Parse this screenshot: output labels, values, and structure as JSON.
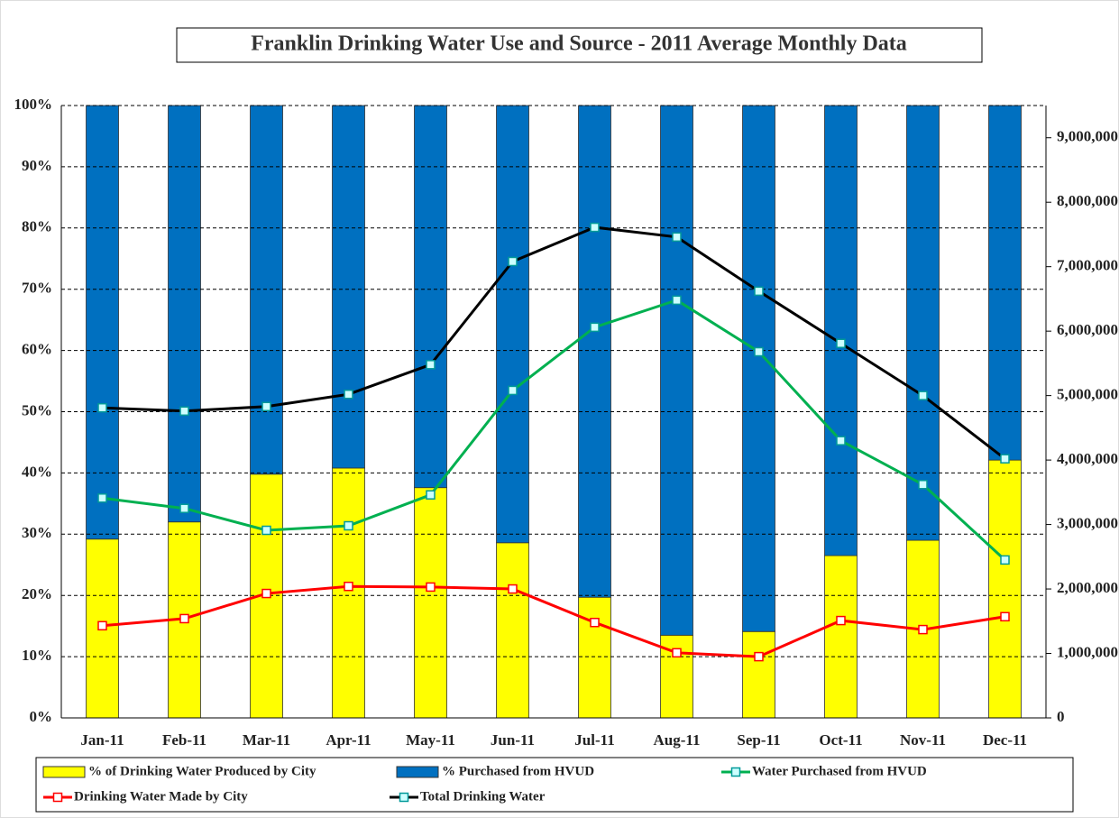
{
  "chart_data": {
    "type": "bar",
    "title": "Franklin Drinking Water Use and Source - 2011 Average Monthly Data",
    "categories": [
      "Jan-11",
      "Feb-11",
      "Mar-11",
      "Apr-11",
      "May-11",
      "Jun-11",
      "Jul-11",
      "Aug-11",
      "Sep-11",
      "Oct-11",
      "Nov-11",
      "Dec-11"
    ],
    "ylim": [
      0,
      100
    ],
    "yticks": [
      {
        "value": 0,
        "label": "0%"
      },
      {
        "value": 10,
        "label": "10%"
      },
      {
        "value": 20,
        "label": "20%"
      },
      {
        "value": 30,
        "label": "30%"
      },
      {
        "value": 40,
        "label": "40%"
      },
      {
        "value": 50,
        "label": "50%"
      },
      {
        "value": 60,
        "label": "60%"
      },
      {
        "value": 70,
        "label": "70%"
      },
      {
        "value": 80,
        "label": "80%"
      },
      {
        "value": 90,
        "label": "90%"
      },
      {
        "value": 100,
        "label": "100%"
      }
    ],
    "y2lim": [
      0,
      9500000
    ],
    "y2ticks": [
      0,
      {
        "value": 1000000,
        "label": "1,000,000"
      },
      {
        "value": 2000000,
        "label": "2,000,000"
      },
      {
        "value": 3000000,
        "label": "3,000,000"
      },
      {
        "value": 4000000,
        "label": "4,000,000"
      },
      {
        "value": 5000000,
        "label": "5,000,000"
      },
      {
        "value": 6000000,
        "label": "6,000,000"
      },
      {
        "value": 7000000,
        "label": "7,000,000"
      },
      {
        "value": 8000000,
        "label": "8,000,000"
      },
      {
        "value": 9000000,
        "label": "9,000,000"
      }
    ],
    "grid": true,
    "series": [
      {
        "name": "% of Drinking Water Produced by City",
        "type": "bar",
        "color": "#ffff00",
        "values": [
          29.2,
          32.0,
          39.8,
          40.8,
          37.6,
          28.6,
          19.7,
          13.5,
          14.1,
          26.5,
          29.0,
          42.1
        ]
      },
      {
        "name": "% Purchased from HVUD",
        "type": "bar",
        "color": "#0070c0",
        "values": [
          70.8,
          68.0,
          60.2,
          59.2,
          62.4,
          71.4,
          80.3,
          86.5,
          85.9,
          73.5,
          71.0,
          57.9
        ]
      },
      {
        "name": "Water Purchased from HVUD",
        "type": "line",
        "axis": "y2",
        "color": "#00b050",
        "values": [
          3410000,
          3250000,
          2910000,
          2980000,
          3460000,
          5080000,
          6060000,
          6480000,
          5680000,
          4300000,
          3620000,
          2450000
        ]
      },
      {
        "name": "Drinking Water Made by City",
        "type": "line",
        "axis": "y2",
        "color": "#ff0000",
        "values": [
          1430000,
          1540000,
          1930000,
          2040000,
          2030000,
          2000000,
          1480000,
          1010000,
          950000,
          1510000,
          1370000,
          1570000
        ]
      },
      {
        "name": "Total Drinking Water",
        "type": "line",
        "axis": "y2",
        "color": "#000000",
        "values": [
          4810000,
          4760000,
          4830000,
          5020000,
          5480000,
          7080000,
          7610000,
          7460000,
          6620000,
          5810000,
          5000000,
          4020000
        ]
      }
    ]
  }
}
